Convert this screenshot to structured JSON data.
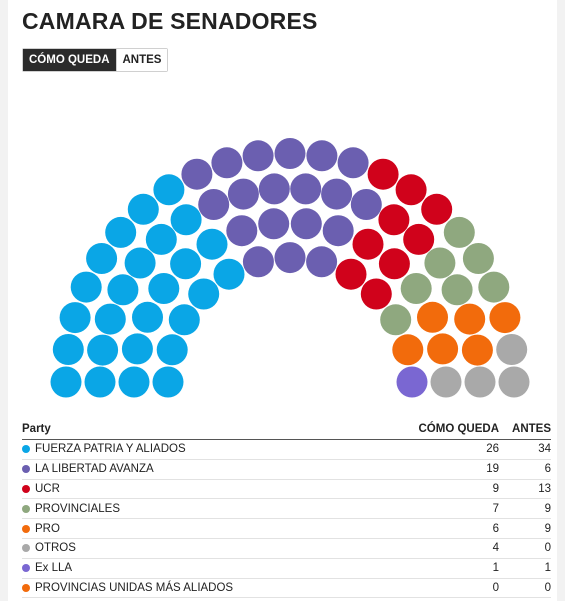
{
  "title": "CAMARA DE SENADORES",
  "toggle": {
    "active_label": "CÓMO QUEDA",
    "inactive_label": "ANTES"
  },
  "table": {
    "headers": {
      "party": "Party",
      "now": "CÓMO QUEDA",
      "before": "ANTES"
    },
    "rows": [
      {
        "name": "FUERZA PATRIA Y ALIADOS",
        "now": "26",
        "before": "34",
        "color": "#0aa6e6"
      },
      {
        "name": "LA LIBERTAD AVANZA",
        "now": "19",
        "before": "6",
        "color": "#6b5fb0"
      },
      {
        "name": "UCR",
        "now": "9",
        "before": "13",
        "color": "#d0021b"
      },
      {
        "name": "PROVINCIALES",
        "now": "7",
        "before": "9",
        "color": "#8fa87f"
      },
      {
        "name": "PRO",
        "now": "6",
        "before": "9",
        "color": "#f26b0c"
      },
      {
        "name": "OTROS",
        "now": "4",
        "before": "0",
        "color": "#a9a9a9"
      },
      {
        "name": "Ex LLA",
        "now": "1",
        "before": "1",
        "color": "#7a67d2"
      },
      {
        "name": "PROVINCIAS UNIDAS MÁS ALIADOS",
        "now": "0",
        "before": "0",
        "color": "#f26b0c"
      }
    ]
  },
  "chart_data": {
    "type": "hemicycle",
    "total_seats": 72,
    "series": [
      {
        "name": "FUERZA PATRIA Y ALIADOS",
        "seats": 26,
        "color": "#0aa6e6"
      },
      {
        "name": "LA LIBERTAD AVANZA",
        "seats": 19,
        "color": "#6b5fb0"
      },
      {
        "name": "UCR",
        "seats": 9,
        "color": "#d0021b"
      },
      {
        "name": "PROVINCIALES",
        "seats": 7,
        "color": "#8fa87f"
      },
      {
        "name": "PRO",
        "seats": 6,
        "color": "#f26b0c"
      },
      {
        "name": "OTROS",
        "seats": 4,
        "color": "#a9a9a9"
      },
      {
        "name": "Ex LLA",
        "seats": 1,
        "color": "#7a67d2"
      },
      {
        "name": "PROVINCIAS UNIDAS MÁS ALIADOS",
        "seats": 0,
        "color": "#f26b0c"
      }
    ]
  }
}
